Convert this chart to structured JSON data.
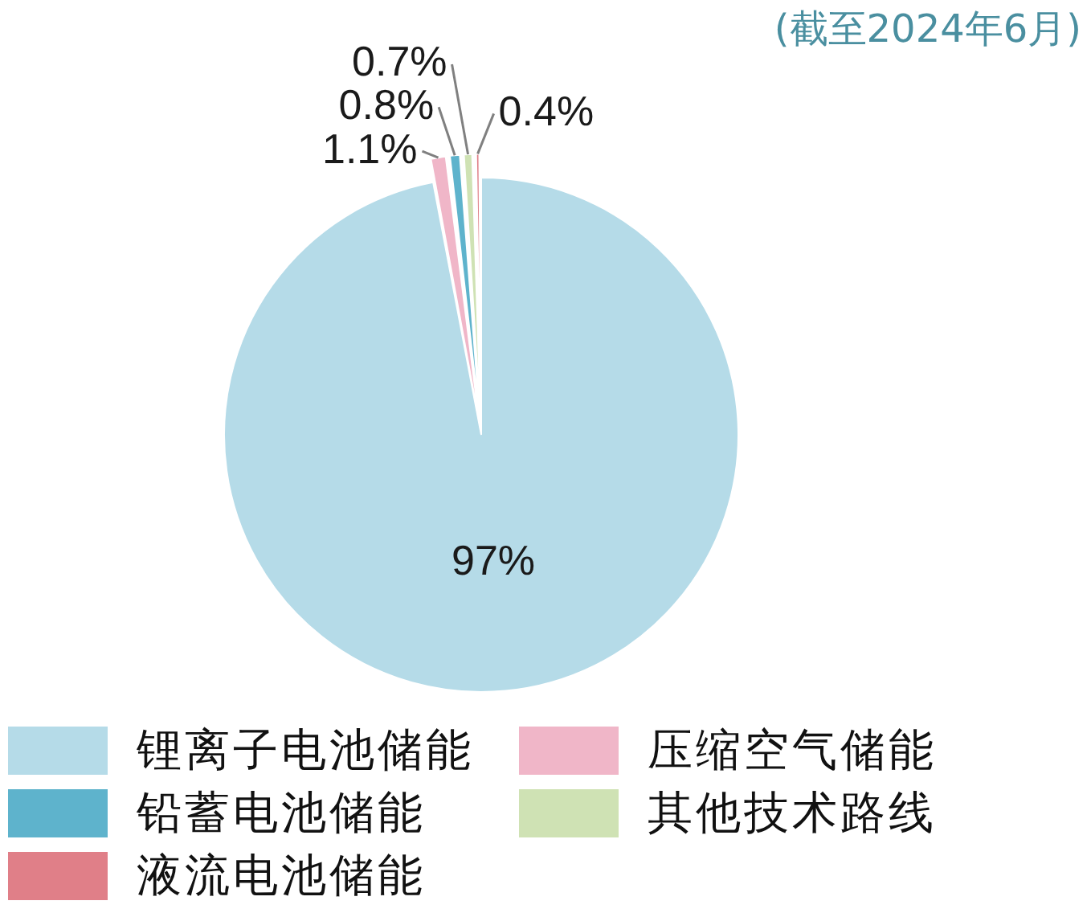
{
  "chart_data": {
    "type": "pie",
    "title": "(截至2024年6月)",
    "categories": [
      "锂离子电池储能",
      "压缩空气储能",
      "铅蓄电池储能",
      "其他技术路线",
      "液流电池储能"
    ],
    "values": [
      97,
      1.1,
      0.8,
      0.7,
      0.4
    ],
    "colors": [
      "#b5dbe8",
      "#f0b6c8",
      "#5eb3cc",
      "#cfe2b4",
      "#e07f88"
    ],
    "value_labels": [
      "97%",
      "1.1%",
      "0.8%",
      "0.7%",
      "0.4%"
    ],
    "legend": "bottom"
  }
}
